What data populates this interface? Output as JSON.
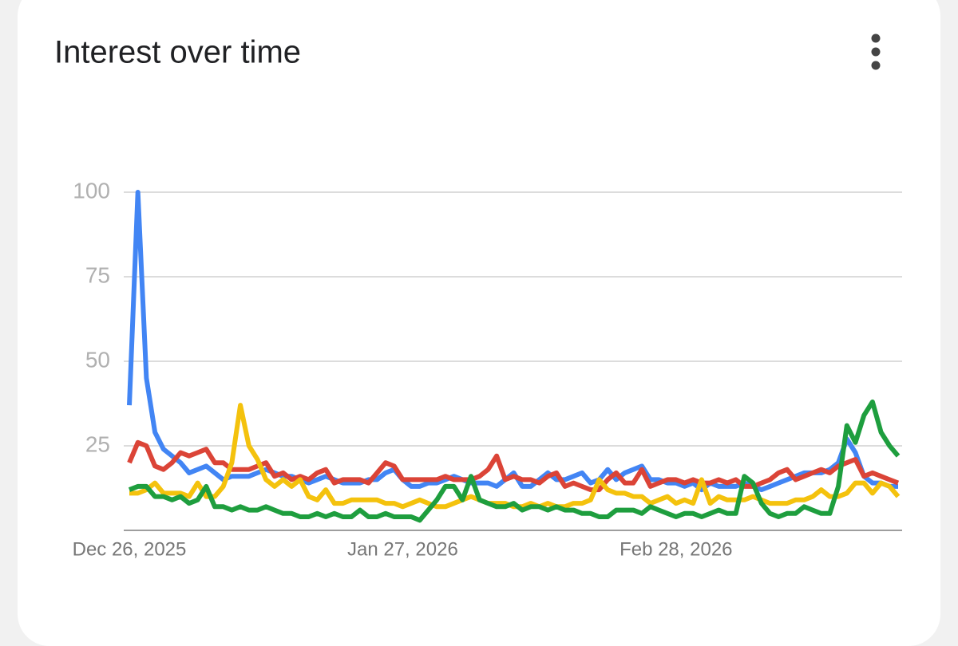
{
  "chart_data": {
    "type": "line",
    "title": "Interest over time",
    "categories": [
      "Dec 26, 2025",
      null,
      null,
      null,
      null,
      null,
      null,
      null,
      null,
      null,
      null,
      null,
      null,
      null,
      null,
      null,
      null,
      null,
      null,
      null,
      null,
      null,
      null,
      null,
      null,
      null,
      null,
      null,
      null,
      null,
      null,
      null,
      "Jan 27, 2026",
      null,
      null,
      null,
      null,
      null,
      null,
      null,
      null,
      null,
      null,
      null,
      null,
      null,
      null,
      null,
      null,
      null,
      null,
      null,
      null,
      null,
      null,
      null,
      null,
      null,
      null,
      null,
      null,
      null,
      null,
      null,
      "Feb 28, 2026",
      null,
      null,
      null,
      null,
      null,
      null,
      null,
      null,
      null,
      null,
      null,
      null,
      null,
      null,
      null,
      null,
      null,
      null,
      null,
      null,
      null,
      null,
      null,
      null,
      null,
      null
    ],
    "ylim": [
      0,
      100
    ],
    "yticks": [
      25,
      50,
      75,
      100
    ],
    "grid": true,
    "series": [
      {
        "color": "#4285f4",
        "values": [
          37,
          100,
          45,
          29,
          24,
          22,
          20,
          17,
          18,
          19,
          17,
          15,
          16,
          16,
          16,
          17,
          18,
          17,
          16,
          16,
          15,
          14,
          15,
          16,
          15,
          14,
          14,
          14,
          15,
          15,
          17,
          18,
          15,
          13,
          13,
          14,
          14,
          15,
          16,
          15,
          14,
          14,
          14,
          13,
          15,
          17,
          13,
          13,
          15,
          17,
          15,
          15,
          16,
          17,
          14,
          15,
          18,
          15,
          17,
          18,
          19,
          15,
          15,
          14,
          14,
          13,
          14,
          12,
          14,
          13,
          13,
          13,
          14,
          13,
          12,
          13,
          14,
          15,
          16,
          17,
          17,
          17,
          18,
          20,
          27,
          23,
          16,
          14,
          14,
          13,
          13
        ]
      },
      {
        "color": "#db4437",
        "values": [
          20,
          26,
          25,
          19,
          18,
          20,
          23,
          22,
          23,
          24,
          20,
          20,
          18,
          18,
          18,
          19,
          20,
          16,
          17,
          15,
          16,
          15,
          17,
          18,
          14,
          15,
          15,
          15,
          14,
          17,
          20,
          19,
          15,
          15,
          15,
          15,
          15,
          16,
          15,
          15,
          15,
          16,
          18,
          22,
          15,
          16,
          15,
          15,
          14,
          16,
          17,
          13,
          14,
          13,
          12,
          12,
          15,
          17,
          14,
          14,
          18,
          13,
          14,
          15,
          15,
          14,
          15,
          14,
          14,
          15,
          14,
          15,
          13,
          13,
          14,
          15,
          17,
          18,
          15,
          16,
          17,
          18,
          17,
          19,
          20,
          21,
          16,
          17,
          16,
          15,
          14
        ]
      },
      {
        "color": "#f4c20d",
        "values": [
          11,
          11,
          12,
          14,
          11,
          11,
          11,
          10,
          14,
          10,
          10,
          13,
          20,
          37,
          25,
          21,
          15,
          13,
          15,
          13,
          15,
          10,
          9,
          12,
          8,
          8,
          9,
          9,
          9,
          9,
          8,
          8,
          7,
          8,
          9,
          8,
          7,
          7,
          8,
          9,
          10,
          9,
          8,
          8,
          8,
          7,
          7,
          8,
          7,
          8,
          7,
          7,
          8,
          8,
          9,
          15,
          12,
          11,
          11,
          10,
          10,
          8,
          9,
          10,
          8,
          9,
          8,
          15,
          8,
          10,
          9,
          9,
          9,
          10,
          9,
          8,
          8,
          8,
          9,
          9,
          10,
          12,
          10,
          10,
          11,
          14,
          14,
          11,
          14,
          13,
          10
        ]
      },
      {
        "color": "#1e9e3e",
        "values": [
          12,
          13,
          13,
          10,
          10,
          9,
          10,
          8,
          9,
          13,
          7,
          7,
          6,
          7,
          6,
          6,
          7,
          6,
          5,
          5,
          4,
          4,
          5,
          4,
          5,
          4,
          4,
          6,
          4,
          4,
          5,
          4,
          4,
          4,
          3,
          6,
          9,
          13,
          13,
          9,
          16,
          9,
          8,
          7,
          7,
          8,
          6,
          7,
          7,
          6,
          7,
          6,
          6,
          5,
          5,
          4,
          4,
          6,
          6,
          6,
          5,
          7,
          6,
          5,
          4,
          5,
          5,
          4,
          5,
          6,
          5,
          5,
          16,
          14,
          8,
          5,
          4,
          5,
          5,
          7,
          6,
          5,
          5,
          13,
          31,
          26,
          34,
          38,
          29,
          25,
          22
        ]
      }
    ]
  }
}
